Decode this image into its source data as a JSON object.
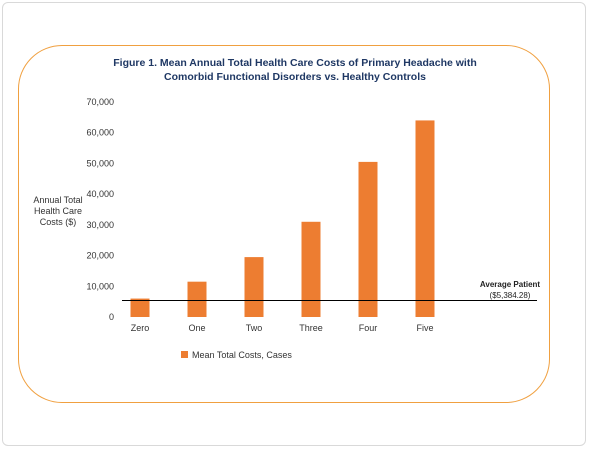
{
  "chart_data": {
    "type": "bar",
    "title": "Figure 1. Mean Annual Total Health Care Costs of Primary Headache with Comorbid Functional Disorders vs. Healthy Controls",
    "ylabel": "Annual Total Health Care Costs ($)",
    "xlabel": "",
    "categories": [
      "Zero",
      "One",
      "Two",
      "Three",
      "Four",
      "Five"
    ],
    "series": [
      {
        "name": "Mean Total Costs, Cases",
        "values": [
          6000,
          11500,
          19500,
          31000,
          50500,
          64000
        ],
        "color": "#ed7d31"
      }
    ],
    "ylim": [
      0,
      70000
    ],
    "yticks": [
      "0",
      "10,000",
      "20,000",
      "30,000",
      "40,000",
      "50,000",
      "60,000",
      "70,000"
    ],
    "reference_line": {
      "value": 5384.28,
      "label": "Average Patient",
      "value_label": "($5,384.28)",
      "color": "#000000"
    },
    "grid": false,
    "legend": "bottom-left"
  },
  "colors": {
    "frame_border": "#f0a040",
    "title": "#1f3864"
  }
}
